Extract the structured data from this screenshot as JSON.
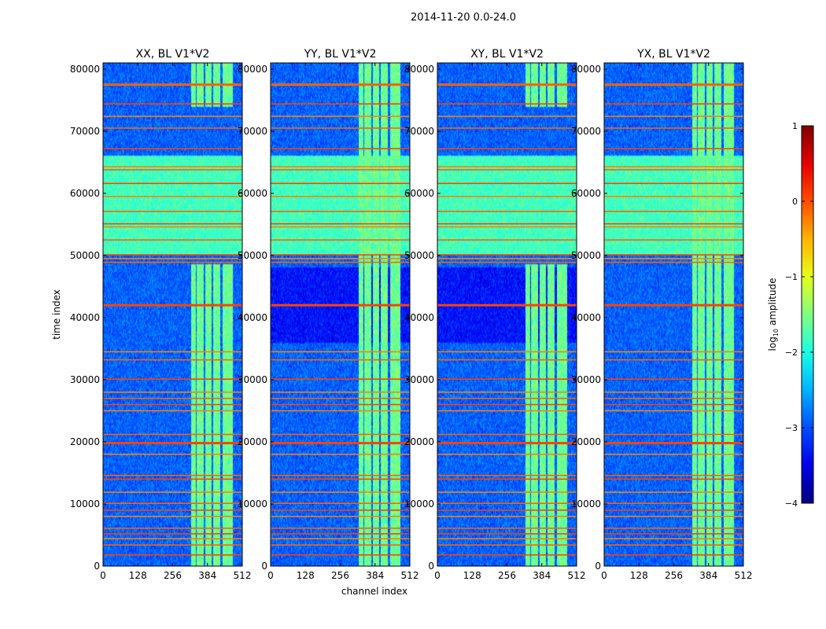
{
  "figure": {
    "suptitle": "2014-11-20 0.0-24.0",
    "xlabel": "channel index",
    "ylabel": "time index"
  },
  "chart_data": {
    "type": "heatmap",
    "x": {
      "label": "channel index",
      "range": [
        0,
        512
      ],
      "ticks": [
        0,
        128,
        256,
        384,
        512
      ]
    },
    "y": {
      "label": "time index",
      "range": [
        0,
        81000
      ],
      "ticks": [
        0,
        10000,
        20000,
        30000,
        40000,
        50000,
        60000,
        70000,
        80000
      ]
    },
    "colorbar": {
      "label": "log10 amplitude",
      "label_base": "log",
      "label_sub": "10",
      "label_rest": " amplitude",
      "range": [
        -4,
        1
      ],
      "ticks": [
        1,
        0,
        -1,
        -2,
        -3,
        -4
      ],
      "tick_labels": [
        "1",
        "0",
        "−1",
        "−2",
        "−3",
        "−4"
      ],
      "colormap": "jet"
    },
    "panels": [
      {
        "title": "XX, BL V1*V2",
        "variant": 0
      },
      {
        "title": "YY, BL V1*V2",
        "variant": 1
      },
      {
        "title": "XY, BL V1*V2",
        "variant": 2
      },
      {
        "title": "YX, BL V1*V2",
        "variant": 3
      }
    ],
    "structure": {
      "baseline_log_amp": -2.9,
      "band_channels": [
        {
          "start": 325,
          "end": 340
        },
        {
          "start": 345,
          "end": 370
        },
        {
          "start": 375,
          "end": 400
        },
        {
          "start": 405,
          "end": 432
        },
        {
          "start": 440,
          "end": 478
        }
      ],
      "band_log_amp": -1.6,
      "band_time_gap": [
        48500,
        74000
      ],
      "rfi_time_lines": [
        1800,
        3400,
        4400,
        5200,
        6100,
        8000,
        9000,
        10100,
        11900,
        14000,
        14600,
        18000,
        19800,
        21200,
        25000,
        26000,
        27000,
        28000,
        30100,
        33200,
        34500,
        42000,
        48900,
        49500,
        50100,
        52500,
        54600,
        55100,
        57100,
        59500,
        61600,
        63800,
        64300,
        67200,
        70500,
        72400,
        74400,
        77500
      ],
      "rfi_log_amp": 0.05,
      "elevated_time_ranges": [
        {
          "start": 50100,
          "end": 66000,
          "log_amp": -1.8
        }
      ]
    }
  }
}
